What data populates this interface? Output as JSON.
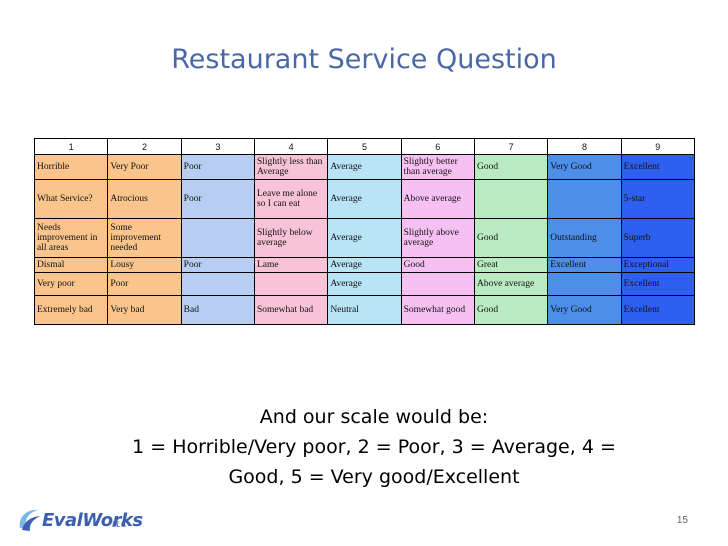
{
  "title": "Restaurant Service Question",
  "table": {
    "headers": [
      "1",
      "2",
      "3",
      "4",
      "5",
      "6",
      "7",
      "8",
      "9"
    ],
    "rows": [
      [
        "Horrible",
        "Very Poor",
        "Poor",
        "Slightly less than Average",
        "Average",
        "Slightly better than average",
        "Good",
        "Very Good",
        "Excellent"
      ],
      [
        "What Service?",
        "Atrocious",
        "Poor",
        "Leave me alone so I can eat",
        "Average",
        "Above average",
        "",
        "",
        "5-star"
      ],
      [
        "Needs improvement in all areas",
        "Some improvement needed",
        "",
        "Slightly below average",
        "Average",
        "Slightly above average",
        "Good",
        "Outstanding",
        "Superb"
      ],
      [
        "Dismal",
        "Lousy",
        "Poor",
        "Lame",
        "Average",
        "Good",
        "Great",
        "Excellent",
        "Exceptional"
      ],
      [
        "Very poor",
        "Poor",
        "",
        "",
        "Average",
        "",
        "Above average",
        "",
        "Excellent"
      ],
      [
        "Extremely bad",
        "Very bad",
        "Bad",
        "Somewhat bad",
        "Neutral",
        "Somewhat good",
        "Good",
        "Very Good",
        "Excellent"
      ]
    ]
  },
  "scale": {
    "line1": "And our scale would be:",
    "line2": "1 = Horrible/Very poor, 2 = Poor, 3 = Average, 4 =",
    "line3": "Good, 5 = Very good/Excellent"
  },
  "footer": {
    "logo_text": "EvalWorks",
    "logo_suffix": "LLC",
    "page_number": "15"
  },
  "colors": {
    "title": "#4a67a8",
    "col1": "#f9c58c",
    "col2": "#f9c58c",
    "col3": "#b7cdf2",
    "col4": "#f8c3d7",
    "col5": "#b8e4f6",
    "col6": "#f7c0f2",
    "col7": "#b9eac1",
    "col8": "#4d8ee8",
    "col9": "#2f5ff0"
  }
}
